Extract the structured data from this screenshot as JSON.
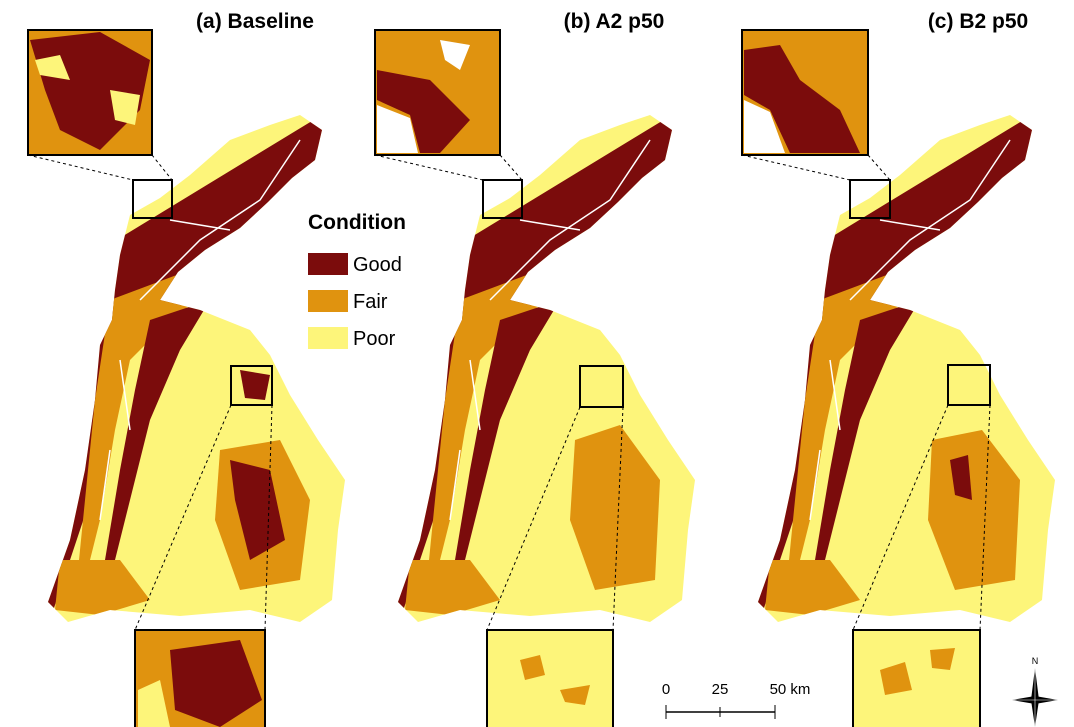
{
  "panels": [
    {
      "title": "(a) Baseline"
    },
    {
      "title": "(b) A2 p50"
    },
    {
      "title": "(c) B2 p50"
    }
  ],
  "legend": {
    "title": "Condition",
    "items": [
      "Good",
      "Fair",
      "Poor"
    ]
  },
  "scale_bar": {
    "labels": [
      "0",
      "25",
      "50 km"
    ]
  },
  "compass": "N"
}
